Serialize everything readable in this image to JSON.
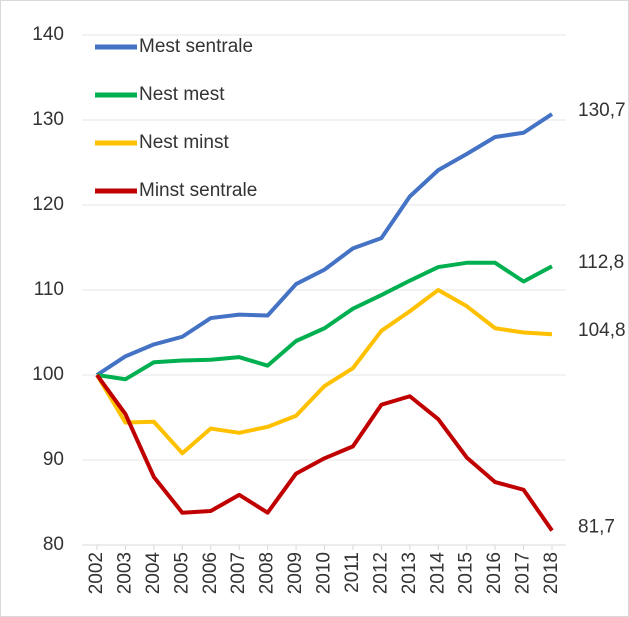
{
  "chart_data": {
    "type": "line",
    "categories": [
      "2002",
      "2003",
      "2004",
      "2005",
      "2006",
      "2007",
      "2008",
      "2009",
      "2010",
      "2011",
      "2012",
      "2013",
      "2014",
      "2015",
      "2016",
      "2017",
      "2018"
    ],
    "series": [
      {
        "name": "Mest sentrale",
        "color": "#4472c4",
        "values": [
          100,
          102.2,
          103.6,
          104.5,
          106.7,
          107.1,
          107,
          110.7,
          112.4,
          114.9,
          116.1,
          121,
          124.1,
          126,
          128,
          128.5,
          130.7
        ],
        "value_labels": [
          null,
          null,
          null,
          null,
          null,
          null,
          null,
          null,
          null,
          null,
          null,
          null,
          null,
          null,
          null,
          null,
          "130,7"
        ]
      },
      {
        "name": "Nest mest",
        "color": "#00b050",
        "values": [
          100,
          99.5,
          101.5,
          101.7,
          101.8,
          102.1,
          101.1,
          104,
          105.5,
          107.8,
          109.4,
          111.1,
          112.7,
          113.2,
          113.2,
          111,
          112.8
        ],
        "value_labels": [
          null,
          null,
          null,
          null,
          null,
          null,
          null,
          null,
          null,
          null,
          null,
          null,
          null,
          null,
          null,
          null,
          "112,8"
        ]
      },
      {
        "name": "Nest minst",
        "color": "#ffc000",
        "values": [
          100,
          94.4,
          94.5,
          90.8,
          93.7,
          93.2,
          93.9,
          95.2,
          98.7,
          100.8,
          105.2,
          107.5,
          110,
          108.1,
          105.5,
          105,
          104.8
        ],
        "value_labels": [
          null,
          null,
          null,
          null,
          null,
          null,
          null,
          null,
          null,
          null,
          null,
          null,
          null,
          null,
          null,
          null,
          "104,8"
        ]
      },
      {
        "name": "Minst sentrale",
        "color": "#c00000",
        "values": [
          100,
          95.4,
          88,
          83.8,
          84,
          85.9,
          83.8,
          88.4,
          90.2,
          91.6,
          96.5,
          97.5,
          94.8,
          90.3,
          87.4,
          86.5,
          81.7
        ],
        "value_labels": [
          null,
          null,
          null,
          null,
          null,
          null,
          null,
          null,
          null,
          null,
          null,
          null,
          null,
          null,
          null,
          null,
          "81,7"
        ]
      }
    ],
    "ylim": [
      80,
      140
    ],
    "yticks": [
      80,
      90,
      100,
      110,
      120,
      130,
      140
    ],
    "grid": true,
    "legend": "top-left"
  }
}
